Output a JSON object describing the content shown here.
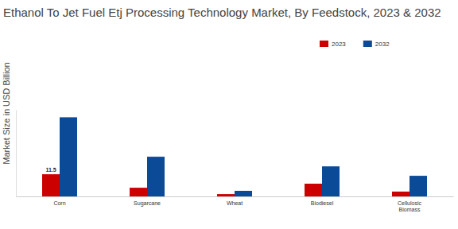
{
  "chart_data": {
    "type": "bar",
    "title": "Ethanol To Jet Fuel Etj Processing Technology Market, By Feedstock, 2023 & 2032",
    "y_label": "Market Size in USD Billion",
    "categories": [
      "Corn",
      "Sugarcane",
      "Wheat",
      "Biodiesel",
      "Cellulosic Biomass"
    ],
    "series": [
      {
        "name": "2023",
        "color": "#cc0000",
        "values": [
          11.5,
          4.5,
          1.2,
          6.6,
          2.5
        ],
        "value_labels": [
          "11.5",
          null,
          null,
          null,
          null
        ]
      },
      {
        "name": "2032",
        "color": "#0b4a96",
        "values": [
          41.1,
          20.6,
          2.9,
          15.6,
          10.7
        ]
      }
    ],
    "ylim": [
      0,
      45
    ],
    "yticks": [],
    "grid": false,
    "legend": "top-right",
    "tick_labels": "x"
  }
}
